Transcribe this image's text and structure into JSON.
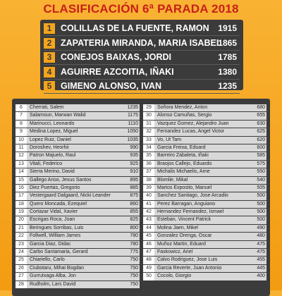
{
  "title": "CLASIFICACIÓN 6ª PARADA 2018",
  "top5": [
    {
      "rank": 1,
      "name": "COLILLAS DE LA FUENTE, RAMON",
      "points": 1915
    },
    {
      "rank": 2,
      "name": "ZAPATERIA MIRANDA, MARIA ISABEL",
      "points": 1865
    },
    {
      "rank": 3,
      "name": "CONEJOS BAIXAS, JORDI",
      "points": 1785
    },
    {
      "rank": 4,
      "name": "AGUIRRE AZCOITIA, IÑAKI",
      "points": 1380
    },
    {
      "rank": 5,
      "name": "GIMENO ALONSO, IVAN",
      "points": 1235
    }
  ],
  "ranking_left": [
    {
      "rank": 6,
      "name": "Cherrati, Salem",
      "points": 1235
    },
    {
      "rank": 7,
      "name": "Salamoun, Marwan Walid",
      "points": 1175
    },
    {
      "rank": 8,
      "name": "Marinucci, Leonardo",
      "points": 1110
    },
    {
      "rank": 9,
      "name": "Medina Lopez, Miguel",
      "points": 1050
    },
    {
      "rank": 10,
      "name": "Lopez Ruiz, Daniel",
      "points": 1035
    },
    {
      "rank": 11,
      "name": "Doroshev, Heorhii",
      "points": 990
    },
    {
      "rank": 12,
      "name": "Patron Majuelo, Raul",
      "points": 935
    },
    {
      "rank": 13,
      "name": "Vitali, Federico",
      "points": 925
    },
    {
      "rank": 14,
      "name": "Sierra Merino, David",
      "points": 910
    },
    {
      "rank": 15,
      "name": "Gallego Anso, Jesus Santos",
      "points": 895
    },
    {
      "rank": 16,
      "name": "Diez Puertas, Gregorio",
      "points": 885
    },
    {
      "rank": 17,
      "name": "Vestergaard Dalgaard, Nicki Leander",
      "points": 875
    },
    {
      "rank": 18,
      "name": "Quero Moncada, Ezequiel",
      "points": 860
    },
    {
      "rank": 19,
      "name": "Cortazar Vidal, Xavier",
      "points": 855
    },
    {
      "rank": 20,
      "name": "Escrigas Roca, Joan",
      "points": 825
    },
    {
      "rank": 21,
      "name": "Beringues Sorribas, Luis",
      "points": 800
    },
    {
      "rank": 22,
      "name": "Follwell, William James",
      "points": 780
    },
    {
      "rank": 23,
      "name": "Garcia Diaz, Didac",
      "points": 780
    },
    {
      "rank": 24,
      "name": "Carbo Santamaria, Gerard",
      "points": 775
    },
    {
      "rank": 25,
      "name": "Chiariello, Carlo",
      "points": 750
    },
    {
      "rank": 26,
      "name": "Ciubotaru, Mihai Bogdan",
      "points": 750
    },
    {
      "rank": 27,
      "name": "Gurrutxaga Alba, Jon",
      "points": 750
    },
    {
      "rank": 28,
      "name": "Rudholm, Lars David",
      "points": 750
    }
  ],
  "ranking_right": [
    {
      "rank": 29,
      "name": "Soñora Mendez, Anton",
      "points": 680
    },
    {
      "rank": 30,
      "name": "Alonso Camuñas, Sergio",
      "points": 655
    },
    {
      "rank": 31,
      "name": "Vazquez Gomez, Alejandro Juan",
      "points": 630
    },
    {
      "rank": 32,
      "name": "Fernandez Lucas, Angel Victor",
      "points": 625
    },
    {
      "rank": 33,
      "name": "Vo, Ut Tam",
      "points": 620
    },
    {
      "rank": 34,
      "name": "Garcia Freixa, Eduard",
      "points": 600
    },
    {
      "rank": 35,
      "name": "Barreiro Zabaleta, Iñaki",
      "points": 585
    },
    {
      "rank": 36,
      "name": "Braojos Callejo, Eduardo",
      "points": 575
    },
    {
      "rank": 37,
      "name": "Michalis Michaelis, Arne",
      "points": 550
    },
    {
      "rank": 38,
      "name": "Blomlie, Mikal",
      "points": 540
    },
    {
      "rank": 39,
      "name": "Martos Exposito, Manuel",
      "points": 505
    },
    {
      "rank": 40,
      "name": "Sanchez Santiago, Jose Arcadio",
      "points": 500
    },
    {
      "rank": 41,
      "name": "Perez Barragan, Anguiano",
      "points": 500
    },
    {
      "rank": 42,
      "name": "Hernandez Fernandez, Ismael",
      "points": 500
    },
    {
      "rank": 43,
      "name": "Esteban, Vincent Patrick",
      "points": 500
    },
    {
      "rank": 44,
      "name": "Molina Jaen, Mikel",
      "points": 490
    },
    {
      "rank": 45,
      "name": "Gonzalez Orenga, Oscar",
      "points": 480
    },
    {
      "rank": 46,
      "name": "Muñoz Martin, Eduard",
      "points": 475
    },
    {
      "rank": 47,
      "name": "Faskowicz, Ariel",
      "points": 475
    },
    {
      "rank": 48,
      "name": "Calvo Rodriguez, Jose Luis",
      "points": 455
    },
    {
      "rank": 49,
      "name": "Garcia Reverte, Juan Antonio",
      "points": 445
    },
    {
      "rank": 50,
      "name": "Cocolo, Giorgio",
      "points": 400
    }
  ]
}
